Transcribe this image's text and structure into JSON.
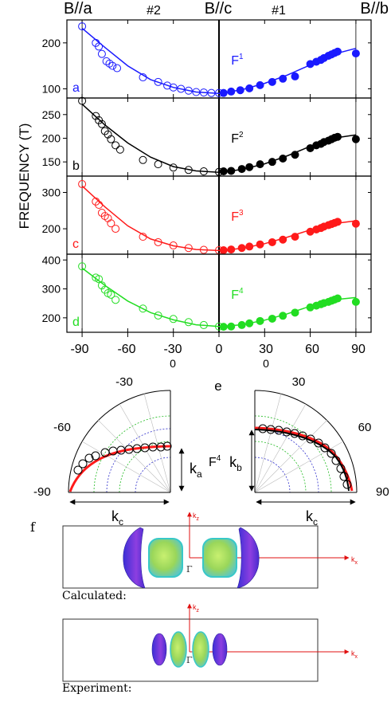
{
  "figure": {
    "top_labels": {
      "left": "B//a",
      "mid_left": "#2",
      "center": "B//c",
      "mid_right": "#1",
      "right": "B//b"
    },
    "ylabel": "FREQUENCY (T)",
    "x_ticks": [
      "-90",
      "-60",
      "-30",
      "0",
      "30",
      "60",
      "90"
    ],
    "x_sub_zeros": [
      "0",
      "0"
    ],
    "polar": {
      "panel_label": "e",
      "left_ticks": [
        "-30",
        "-60",
        "-90"
      ],
      "right_ticks": [
        "30",
        "60",
        "90"
      ],
      "band_label": "F",
      "band_sup": "4",
      "ka_label": "k",
      "ka_sub": "a",
      "kb_label": "k",
      "kb_sub": "b",
      "kc_label": "k",
      "kc_sub": "c"
    },
    "fermi": {
      "panel_label": "f",
      "calc_caption": "Calculated:",
      "exp_caption": "Experiment:",
      "kz": "k",
      "kz_sub": "z",
      "kx": "k",
      "kx_sub": "x",
      "gamma": "Γ"
    }
  },
  "chart_data": [
    {
      "type": "scatter",
      "panel": "a",
      "band_label": "F",
      "band_sup": "1",
      "color": "#1a1aff",
      "ylim": [
        80,
        250
      ],
      "yticks": [
        100,
        200
      ],
      "xlim": [
        -100,
        100
      ],
      "open_points": [
        [
          -90,
          236
        ],
        [
          -81,
          200
        ],
        [
          -79,
          192
        ],
        [
          -77,
          176
        ],
        [
          -74,
          160
        ],
        [
          -72,
          155
        ],
        [
          -70,
          150
        ],
        [
          -67,
          145
        ],
        [
          -50,
          125
        ],
        [
          -40,
          115
        ],
        [
          -34,
          107
        ],
        [
          -30,
          103
        ],
        [
          -25,
          100
        ],
        [
          -20,
          96
        ],
        [
          -15,
          93
        ],
        [
          -10,
          92
        ],
        [
          -5,
          91
        ],
        [
          0,
          91
        ]
      ],
      "filled_points": [
        [
          3,
          91
        ],
        [
          8,
          94
        ],
        [
          14,
          97
        ],
        [
          20,
          101
        ],
        [
          27,
          108
        ],
        [
          35,
          115
        ],
        [
          42,
          122
        ],
        [
          50,
          127
        ],
        [
          60,
          154
        ],
        [
          64,
          159
        ],
        [
          67,
          163
        ],
        [
          69,
          167
        ],
        [
          72,
          172
        ],
        [
          74,
          175
        ],
        [
          76,
          178
        ],
        [
          78,
          181
        ],
        [
          90,
          177
        ]
      ],
      "fit": [
        [
          -90,
          232
        ],
        [
          -75,
          190
        ],
        [
          -60,
          150
        ],
        [
          -45,
          120
        ],
        [
          -30,
          103
        ],
        [
          -15,
          93
        ],
        [
          0,
          90
        ],
        [
          15,
          98
        ],
        [
          30,
          112
        ],
        [
          45,
          130
        ],
        [
          60,
          152
        ],
        [
          75,
          175
        ],
        [
          90,
          188
        ]
      ]
    },
    {
      "type": "scatter",
      "panel": "b",
      "band_label": "F",
      "band_sup": "2",
      "color": "#000000",
      "ylim": [
        120,
        285
      ],
      "yticks": [
        150,
        200,
        250
      ],
      "xlim": [
        -100,
        100
      ],
      "open_points": [
        [
          -90,
          279
        ],
        [
          -81,
          247
        ],
        [
          -79,
          238
        ],
        [
          -77,
          230
        ],
        [
          -75,
          215
        ],
        [
          -73,
          208
        ],
        [
          -71,
          198
        ],
        [
          -68,
          185
        ],
        [
          -65,
          176
        ],
        [
          -50,
          154
        ],
        [
          -40,
          145
        ],
        [
          -30,
          138
        ],
        [
          -20,
          133
        ],
        [
          -10,
          130
        ],
        [
          0,
          129
        ]
      ],
      "filled_points": [
        [
          3,
          130
        ],
        [
          8,
          131
        ],
        [
          15,
          135
        ],
        [
          20,
          139
        ],
        [
          27,
          145
        ],
        [
          35,
          150
        ],
        [
          42,
          157
        ],
        [
          50,
          165
        ],
        [
          60,
          179
        ],
        [
          64,
          185
        ],
        [
          67,
          188
        ],
        [
          69,
          192
        ],
        [
          72,
          195
        ],
        [
          74,
          198
        ],
        [
          76,
          201
        ],
        [
          78,
          203
        ],
        [
          90,
          198
        ]
      ],
      "fit": [
        [
          -90,
          272
        ],
        [
          -75,
          228
        ],
        [
          -60,
          190
        ],
        [
          -45,
          160
        ],
        [
          -30,
          140
        ],
        [
          -15,
          131
        ],
        [
          0,
          128
        ],
        [
          15,
          134
        ],
        [
          30,
          146
        ],
        [
          45,
          163
        ],
        [
          60,
          183
        ],
        [
          75,
          200
        ],
        [
          90,
          207
        ]
      ]
    },
    {
      "type": "scatter",
      "panel": "c",
      "band_label": "F",
      "band_sup": "3",
      "color": "#ff1a1a",
      "ylim": [
        130,
        345
      ],
      "yticks": [
        200,
        300
      ],
      "xlim": [
        -100,
        100
      ],
      "open_points": [
        [
          -90,
          323
        ],
        [
          -81,
          275
        ],
        [
          -79,
          266
        ],
        [
          -77,
          244
        ],
        [
          -75,
          235
        ],
        [
          -73,
          229
        ],
        [
          -71,
          215
        ],
        [
          -68,
          200
        ],
        [
          -50,
          178
        ],
        [
          -40,
          163
        ],
        [
          -30,
          154
        ],
        [
          -20,
          147
        ],
        [
          -10,
          142
        ],
        [
          0,
          141
        ]
      ],
      "filled_points": [
        [
          3,
          141
        ],
        [
          8,
          143
        ],
        [
          15,
          147
        ],
        [
          20,
          151
        ],
        [
          27,
          157
        ],
        [
          35,
          163
        ],
        [
          42,
          170
        ],
        [
          50,
          178
        ],
        [
          60,
          192
        ],
        [
          64,
          198
        ],
        [
          67,
          202
        ],
        [
          69,
          206
        ],
        [
          72,
          210
        ],
        [
          74,
          213
        ],
        [
          76,
          216
        ],
        [
          78,
          219
        ],
        [
          90,
          214
        ]
      ],
      "fit": [
        [
          -90,
          318
        ],
        [
          -75,
          260
        ],
        [
          -60,
          208
        ],
        [
          -45,
          172
        ],
        [
          -30,
          153
        ],
        [
          -15,
          143
        ],
        [
          0,
          140
        ],
        [
          15,
          146
        ],
        [
          30,
          159
        ],
        [
          45,
          177
        ],
        [
          60,
          197
        ],
        [
          75,
          214
        ],
        [
          90,
          222
        ]
      ]
    },
    {
      "type": "scatter",
      "panel": "d",
      "band_label": "F",
      "band_sup": "4",
      "color": "#22dd22",
      "ylim": [
        150,
        420
      ],
      "yticks": [
        200,
        300,
        400
      ],
      "xlim": [
        -100,
        100
      ],
      "open_points": [
        [
          -90,
          378
        ],
        [
          -81,
          339
        ],
        [
          -79,
          334
        ],
        [
          -77,
          312
        ],
        [
          -75,
          297
        ],
        [
          -73,
          285
        ],
        [
          -71,
          280
        ],
        [
          -68,
          262
        ],
        [
          -50,
          232
        ],
        [
          -40,
          208
        ],
        [
          -30,
          196
        ],
        [
          -20,
          185
        ],
        [
          -10,
          175
        ],
        [
          0,
          170
        ]
      ],
      "filled_points": [
        [
          3,
          169
        ],
        [
          8,
          170
        ],
        [
          15,
          175
        ],
        [
          20,
          181
        ],
        [
          27,
          189
        ],
        [
          35,
          197
        ],
        [
          42,
          207
        ],
        [
          50,
          218
        ],
        [
          60,
          236
        ],
        [
          64,
          242
        ],
        [
          67,
          247
        ],
        [
          69,
          251
        ],
        [
          72,
          255
        ],
        [
          74,
          259
        ],
        [
          76,
          263
        ],
        [
          78,
          267
        ],
        [
          90,
          255
        ]
      ],
      "fit": [
        [
          -90,
          372
        ],
        [
          -75,
          312
        ],
        [
          -60,
          258
        ],
        [
          -45,
          218
        ],
        [
          -30,
          193
        ],
        [
          -15,
          176
        ],
        [
          0,
          170
        ],
        [
          15,
          176
        ],
        [
          30,
          192
        ],
        [
          45,
          214
        ],
        [
          60,
          240
        ],
        [
          75,
          262
        ],
        [
          90,
          270
        ]
      ]
    }
  ]
}
